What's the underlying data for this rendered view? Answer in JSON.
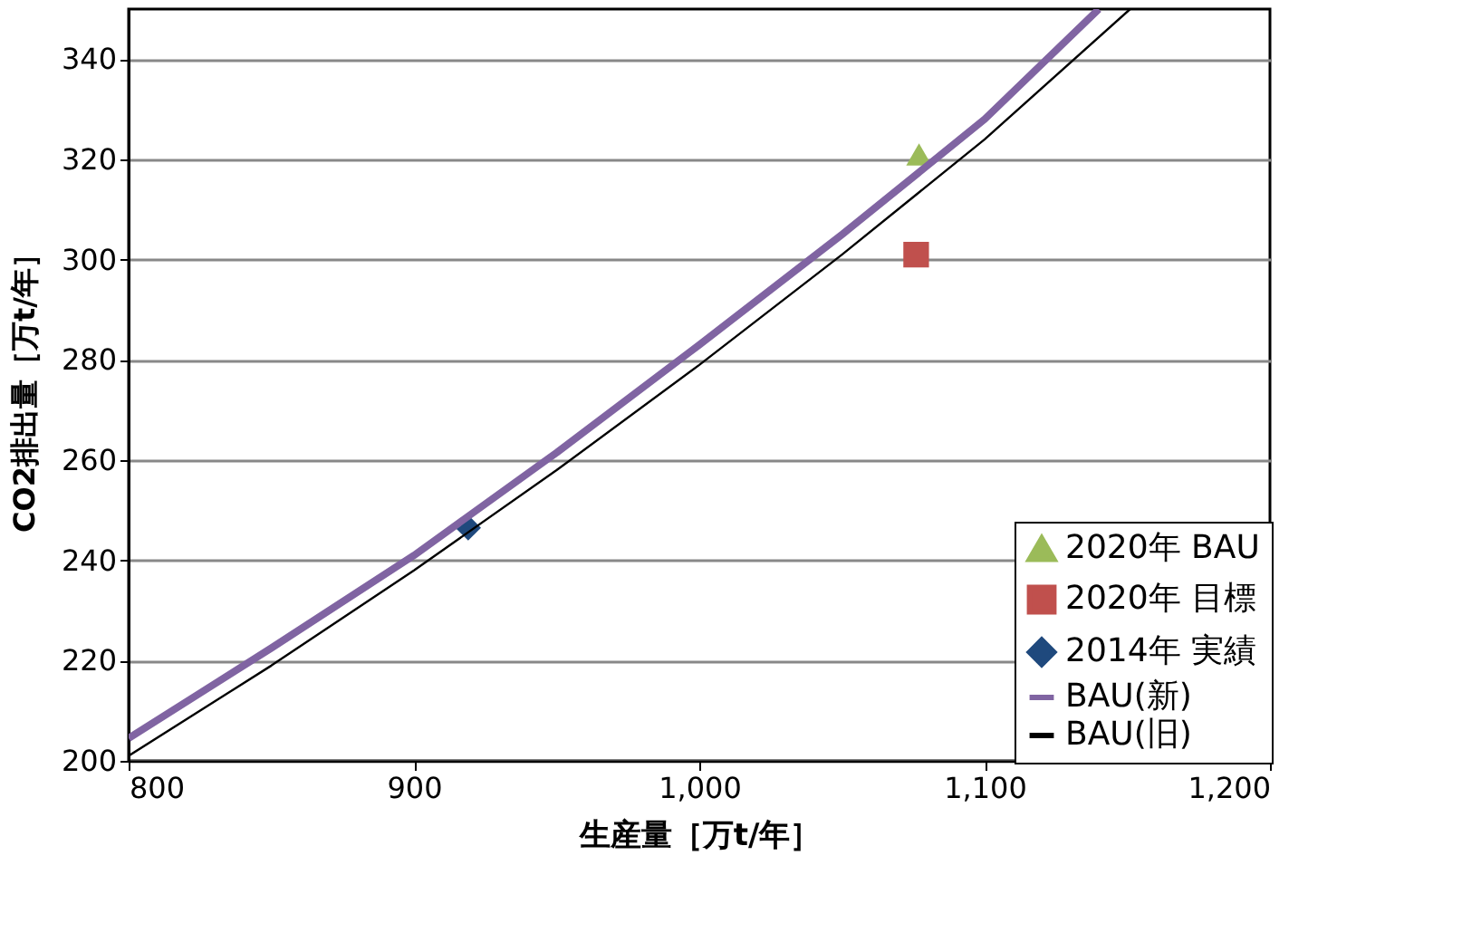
{
  "chart_data": {
    "type": "scatter",
    "xlabel": "生産量［万t/年］",
    "ylabel": "CO2排出量［万t/年］",
    "xlim": [
      800,
      1200
    ],
    "ylim": [
      200,
      350
    ],
    "xticks": [
      800,
      900,
      {
        "value": 1000,
        "label": "1,000"
      },
      {
        "value": 1100,
        "label": "1,100"
      },
      {
        "value": 1200,
        "label": "1,200"
      }
    ],
    "yticks": [
      200,
      220,
      240,
      260,
      280,
      300,
      320,
      340
    ],
    "grid": "y",
    "legend": "bottom right",
    "series": [
      {
        "name": "2020年 BAU",
        "type": "scatter",
        "marker": "triangle",
        "color": "#9bbb59",
        "x": [
          1077
        ],
        "values": [
          321
        ]
      },
      {
        "name": "2020年 目標",
        "type": "scatter",
        "marker": "square",
        "color": "#c0504d",
        "x": [
          1076
        ],
        "values": [
          301
        ]
      },
      {
        "name": "2014年 実績",
        "type": "scatter",
        "marker": "diamond",
        "color": "#1f497d",
        "x": [
          919
        ],
        "values": [
          246.5
        ]
      },
      {
        "name": "BAU(新)",
        "type": "line",
        "marker": "none",
        "line_style": "solid",
        "color": "#8064a2",
        "x": [
          800,
          850,
          900,
          950,
          1000,
          1050,
          1100,
          1140
        ],
        "values": [
          204.5,
          222.5,
          241,
          261.5,
          283,
          305,
          328,
          350
        ]
      },
      {
        "name": "BAU(旧)",
        "type": "line",
        "marker": "none",
        "line_style": "solid",
        "color": "#000000",
        "x": [
          800,
          850,
          900,
          950,
          1000,
          1050,
          1100,
          1151
        ],
        "values": [
          201,
          219,
          238,
          258,
          279,
          301,
          324,
          350
        ]
      }
    ]
  }
}
